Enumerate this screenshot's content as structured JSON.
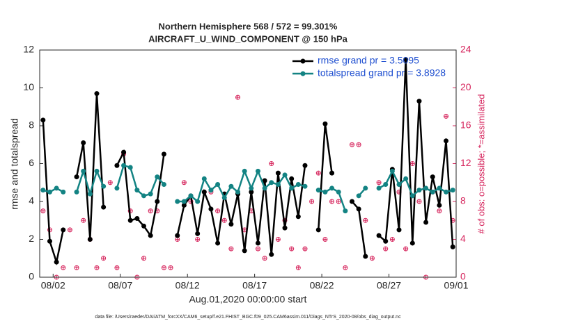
{
  "chart_data": {
    "type": "line",
    "title": "Northern Hemisphere 568 / 572 = 99.301%",
    "subtitle": "AIRCRAFT_U_WIND_COMPONENT @ 150 hPa",
    "ylabel": "rmse and totalspread",
    "y2label": "# of obs: o=possible; *=assimilated",
    "xlabel": "Aug.01,2020 00:00:00 start",
    "footnote": "data file: /Users/raeder/DAI/ATM_forcXX/CAM6_setup/f.e21.FHIST_BGC.f09_025.CAM6assim.011/Diags_NTrS_2020-08/obs_diag_output.nc",
    "xlim": [
      0,
      31
    ],
    "xticks": [
      {
        "value": 1,
        "label": "08/02"
      },
      {
        "value": 6,
        "label": "08/07"
      },
      {
        "value": 11,
        "label": "08/12"
      },
      {
        "value": 16,
        "label": "08/17"
      },
      {
        "value": 21,
        "label": "08/22"
      },
      {
        "value": 26,
        "label": "08/27"
      },
      {
        "value": 31,
        "label": "09/01"
      }
    ],
    "ylim": [
      0,
      12
    ],
    "yticks": [
      0,
      2,
      4,
      6,
      8,
      10,
      12
    ],
    "y2lim": [
      0,
      24
    ],
    "y2ticks": [
      0,
      4,
      8,
      12,
      16,
      20,
      24
    ],
    "legend": "upper right",
    "x": [
      0.25,
      0.75,
      1.25,
      1.75,
      2.25,
      2.75,
      3.25,
      3.75,
      4.25,
      4.75,
      5.25,
      5.75,
      6.25,
      6.75,
      7.25,
      7.75,
      8.25,
      8.75,
      9.25,
      9.75,
      10.25,
      10.75,
      11.25,
      11.75,
      12.25,
      12.75,
      13.25,
      13.75,
      14.25,
      14.75,
      15.25,
      15.75,
      16.25,
      16.75,
      17.25,
      17.75,
      18.25,
      18.75,
      19.25,
      19.75,
      20.25,
      20.75,
      21.25,
      21.75,
      22.25,
      22.75,
      23.25,
      23.75,
      24.25,
      24.75,
      25.25,
      25.75,
      26.25,
      26.75,
      27.25,
      27.75,
      28.25,
      28.75,
      29.25,
      29.75,
      30.25,
      30.75
    ],
    "series": [
      {
        "name": "rmse grand pr = 3.5095",
        "color": "#000000",
        "values": [
          8.3,
          1.9,
          0.8,
          2.5,
          null,
          5.3,
          7.1,
          2.0,
          9.7,
          3.7,
          null,
          5.9,
          6.6,
          3.0,
          3.1,
          2.7,
          2.2,
          4.0,
          6.5,
          null,
          2.2,
          3.8,
          4.3,
          2.3,
          4.5,
          3.6,
          1.8,
          4.4,
          2.8,
          4.4,
          1.4,
          4.5,
          1.8,
          5.1,
          1.2,
          5.5,
          2.6,
          5.2,
          3.2,
          5.9,
          null,
          2.5,
          8.1,
          5.5,
          null,
          null,
          4.0,
          3.6,
          1.1,
          null,
          2.2,
          1.9,
          5.7,
          2.5,
          11.5,
          1.8,
          9.3,
          2.9,
          5.3,
          3.8,
          7.2,
          1.6
        ]
      },
      {
        "name": "totalspread grand pr = 3.8928",
        "color": "#138383",
        "values": [
          4.6,
          4.5,
          4.7,
          4.5,
          null,
          4.5,
          5.6,
          4.4,
          5.6,
          4.8,
          null,
          4.7,
          5.9,
          5.8,
          4.6,
          4.3,
          4.4,
          5.3,
          4.9,
          null,
          4.0,
          4.0,
          4.3,
          4.0,
          5.2,
          4.6,
          4.9,
          4.2,
          4.8,
          4.5,
          5.6,
          4.7,
          5.6,
          4.7,
          5.0,
          4.9,
          5.4,
          4.7,
          4.9,
          4.8,
          null,
          4.6,
          4.5,
          4.7,
          4.5,
          3.5,
          null,
          4.3,
          4.7,
          null,
          4.7,
          4.9,
          5.6,
          4.9,
          5.2,
          4.3,
          4.6,
          4.7,
          4.5,
          4.7,
          4.5,
          4.6
        ]
      }
    ],
    "obs_counts": {
      "color": "#d6245c",
      "axis": "y2",
      "values": [
        7,
        5,
        0,
        1,
        5,
        1,
        6,
        4,
        1,
        2,
        10,
        1,
        13,
        7,
        0,
        2,
        7,
        7,
        1,
        1,
        4,
        10,
        8,
        4,
        9,
        9,
        7,
        6,
        3,
        19,
        5,
        7,
        3,
        2,
        12,
        4,
        6,
        3,
        1,
        3,
        8,
        11,
        4,
        8,
        8,
        1,
        14,
        14,
        6,
        2,
        10,
        3,
        4,
        9,
        3,
        12,
        8,
        0,
        9,
        7,
        17,
        6
      ]
    }
  }
}
